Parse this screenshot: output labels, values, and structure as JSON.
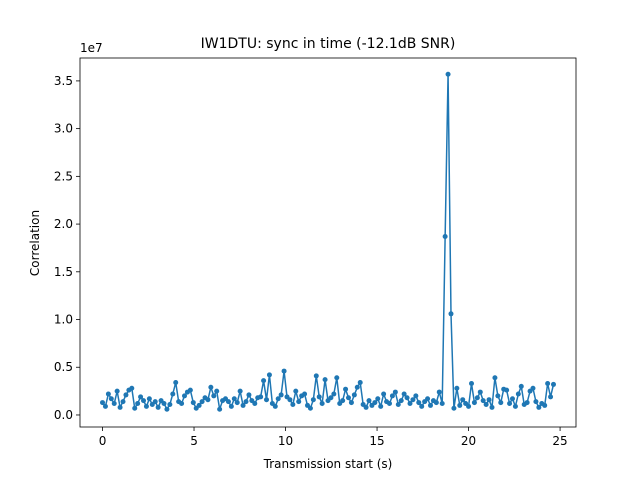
{
  "chart_data": {
    "type": "line",
    "title": "IW1DTU: sync in time (-12.1dB SNR)",
    "x_label": "Transmission start (s)",
    "y_label": "Correlation",
    "y_offset_label": "1e7",
    "x": [
      0,
      0.16,
      0.32,
      0.48,
      0.64,
      0.8,
      0.96,
      1.12,
      1.28,
      1.44,
      1.6,
      1.76,
      1.92,
      2.08,
      2.24,
      2.4,
      2.56,
      2.72,
      2.88,
      3.04,
      3.2,
      3.36,
      3.52,
      3.68,
      3.84,
      4,
      4.16,
      4.32,
      4.48,
      4.64,
      4.8,
      4.96,
      5.12,
      5.28,
      5.44,
      5.6,
      5.76,
      5.92,
      6.08,
      6.24,
      6.4,
      6.56,
      6.72,
      6.88,
      7.04,
      7.2,
      7.36,
      7.52,
      7.68,
      7.84,
      8,
      8.16,
      8.32,
      8.48,
      8.64,
      8.8,
      8.96,
      9.12,
      9.28,
      9.44,
      9.6,
      9.76,
      9.92,
      10.08,
      10.24,
      10.4,
      10.56,
      10.72,
      10.88,
      11.04,
      11.2,
      11.36,
      11.52,
      11.68,
      11.84,
      12,
      12.16,
      12.32,
      12.48,
      12.64,
      12.8,
      12.96,
      13.12,
      13.28,
      13.44,
      13.6,
      13.76,
      13.92,
      14.08,
      14.24,
      14.4,
      14.56,
      14.72,
      14.88,
      15.04,
      15.2,
      15.36,
      15.52,
      15.68,
      15.84,
      16,
      16.16,
      16.32,
      16.48,
      16.64,
      16.8,
      16.96,
      17.12,
      17.28,
      17.44,
      17.6,
      17.76,
      17.92,
      18.08,
      18.24,
      18.4,
      18.56,
      18.72,
      18.88,
      19.04,
      19.2,
      19.36,
      19.52,
      19.68,
      19.84,
      20,
      20.16,
      20.32,
      20.48,
      20.64,
      20.8,
      20.96,
      21.12,
      21.28,
      21.44,
      21.6,
      21.76,
      21.92,
      22.08,
      22.24,
      22.4,
      22.56,
      22.72,
      22.88,
      23.04,
      23.2,
      23.36,
      23.52,
      23.68,
      23.84,
      24,
      24.16,
      24.32,
      24.48,
      24.64
    ],
    "series": [
      {
        "color": "#1f77b4",
        "values": [
          0.13,
          0.09,
          0.22,
          0.17,
          0.12,
          0.25,
          0.08,
          0.14,
          0.21,
          0.26,
          0.28,
          0.07,
          0.12,
          0.19,
          0.15,
          0.09,
          0.17,
          0.11,
          0.14,
          0.08,
          0.15,
          0.12,
          0.06,
          0.11,
          0.22,
          0.34,
          0.14,
          0.12,
          0.2,
          0.24,
          0.26,
          0.13,
          0.07,
          0.1,
          0.14,
          0.18,
          0.16,
          0.29,
          0.2,
          0.25,
          0.06,
          0.15,
          0.17,
          0.14,
          0.09,
          0.17,
          0.13,
          0.25,
          0.1,
          0.14,
          0.21,
          0.15,
          0.12,
          0.18,
          0.19,
          0.36,
          0.16,
          0.42,
          0.12,
          0.09,
          0.17,
          0.21,
          0.46,
          0.19,
          0.16,
          0.11,
          0.25,
          0.14,
          0.2,
          0.22,
          0.1,
          0.07,
          0.16,
          0.41,
          0.19,
          0.12,
          0.37,
          0.15,
          0.18,
          0.22,
          0.39,
          0.12,
          0.15,
          0.27,
          0.18,
          0.13,
          0.21,
          0.29,
          0.34,
          0.11,
          0.08,
          0.15,
          0.1,
          0.13,
          0.17,
          0.09,
          0.22,
          0.14,
          0.12,
          0.2,
          0.24,
          0.11,
          0.15,
          0.22,
          0.18,
          0.12,
          0.16,
          0.2,
          0.13,
          0.09,
          0.14,
          0.17,
          0.1,
          0.15,
          0.13,
          0.24,
          0.12,
          1.87,
          3.57,
          1.06,
          0.07,
          0.28,
          0.1,
          0.16,
          0.12,
          0.09,
          0.33,
          0.13,
          0.18,
          0.24,
          0.15,
          0.11,
          0.16,
          0.08,
          0.39,
          0.2,
          0.13,
          0.27,
          0.26,
          0.12,
          0.17,
          0.09,
          0.22,
          0.3,
          0.11,
          0.13,
          0.25,
          0.28,
          0.14,
          0.08,
          0.12,
          0.1,
          0.33,
          0.19,
          0.32
        ]
      }
    ],
    "xlim": [
      -1.23,
      25.87
    ],
    "xticks": [
      0,
      5,
      10,
      15,
      20,
      25
    ],
    "ylim": [
      -0.126,
      3.74
    ],
    "yticks": [
      {
        "value": 0,
        "label": "0.0"
      },
      0.5,
      {
        "value": 1,
        "label": "1.0"
      },
      1.5,
      {
        "value": 2,
        "label": "2.0"
      },
      2.5,
      {
        "value": 3,
        "label": "3.0"
      },
      3.5
    ],
    "grid": false
  }
}
